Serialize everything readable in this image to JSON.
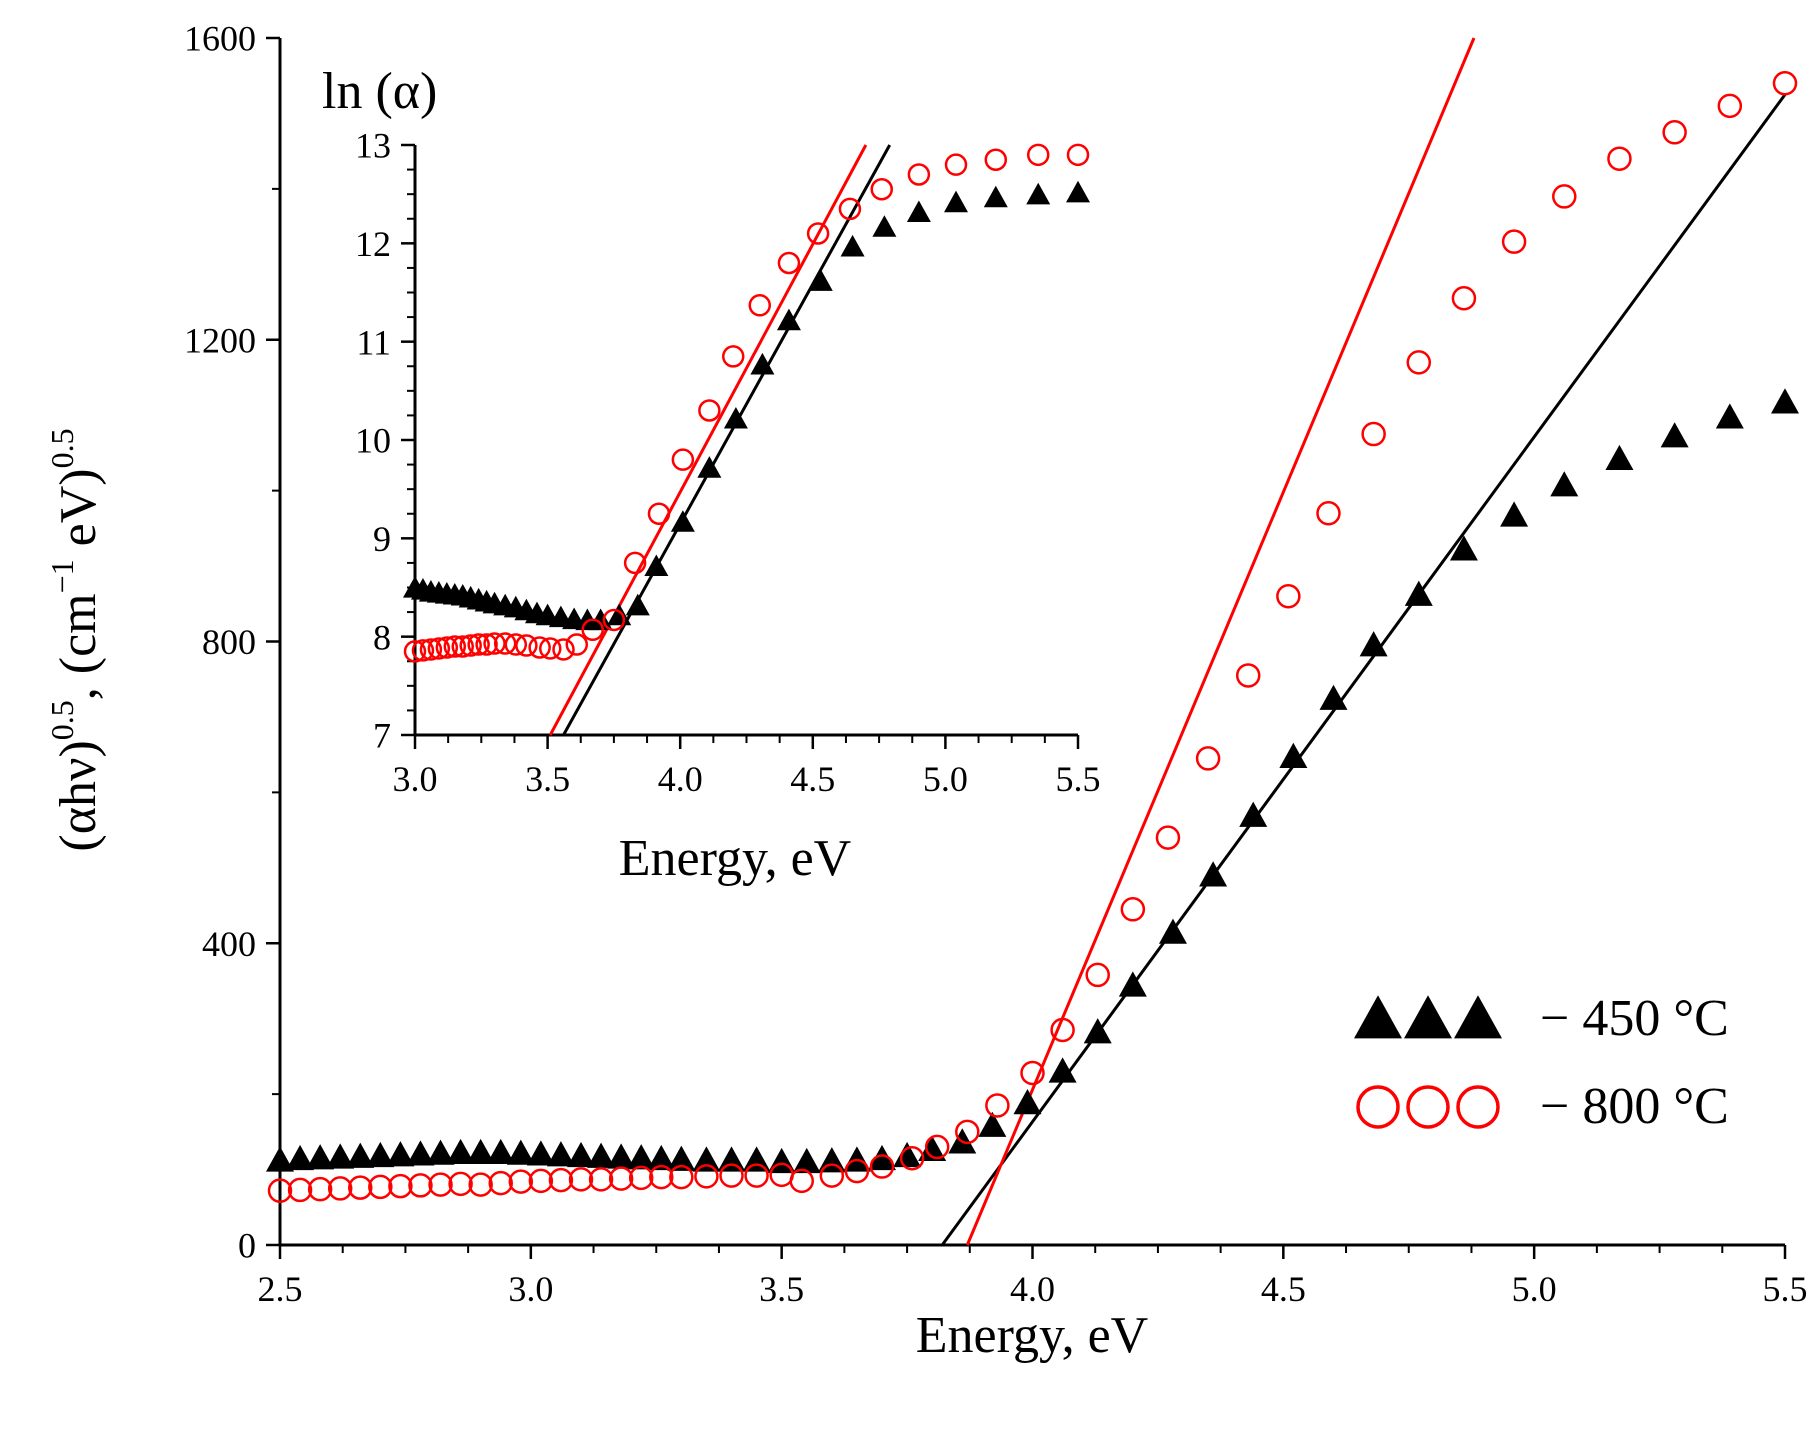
{
  "chart_data": [
    {
      "type": "scatter",
      "role": "main",
      "title": "",
      "xlabel": "Energy, eV",
      "ylabel_parts": {
        "base": "(αhν)",
        "exp1": "0.5",
        "mid": ", (cm",
        "exp2": "−1",
        "mid2": " eV)",
        "exp3": "0.5"
      },
      "xlim": [
        2.5,
        5.5
      ],
      "ylim": [
        0,
        1600
      ],
      "xticks": [
        2.5,
        3.0,
        3.5,
        4.0,
        4.5,
        5.0,
        5.5
      ],
      "xtick_labels": [
        "2.5",
        "3.0",
        "3.5",
        "4.0",
        "4.5",
        "5.0",
        "5.5"
      ],
      "yticks": [
        0,
        400,
        800,
        1200,
        1600
      ],
      "ytick_labels": [
        "0",
        "400",
        "800",
        "1200",
        "1600"
      ],
      "grid": false,
      "legend_position": "bottom-right",
      "series": [
        {
          "name": "− 450 °C",
          "marker": "triangle",
          "color": "#000000",
          "x": [
            2.5,
            2.54,
            2.58,
            2.62,
            2.66,
            2.7,
            2.74,
            2.78,
            2.82,
            2.86,
            2.9,
            2.94,
            2.98,
            3.02,
            3.06,
            3.1,
            3.14,
            3.18,
            3.22,
            3.26,
            3.3,
            3.35,
            3.4,
            3.45,
            3.5,
            3.55,
            3.6,
            3.65,
            3.7,
            3.75,
            3.8,
            3.86,
            3.92,
            3.99,
            4.06,
            4.13,
            4.2,
            4.28,
            4.36,
            4.44,
            4.52,
            4.6,
            4.68,
            4.77,
            4.86,
            4.96,
            5.06,
            5.17,
            5.28,
            5.39,
            5.5
          ],
          "y": [
            110,
            112,
            113,
            114,
            115,
            116,
            117,
            118,
            119,
            120,
            120,
            120,
            119,
            118,
            117,
            116,
            115,
            114,
            113,
            112,
            111,
            110,
            110,
            110,
            108,
            108,
            109,
            110,
            112,
            116,
            124,
            134,
            156,
            186,
            228,
            280,
            342,
            412,
            488,
            567,
            645,
            722,
            793,
            860,
            920,
            965,
            1005,
            1040,
            1070,
            1095,
            1115
          ]
        },
        {
          "name": "− 800 °C",
          "marker": "circle",
          "color": "#ff0000",
          "x": [
            2.5,
            2.54,
            2.58,
            2.62,
            2.66,
            2.7,
            2.74,
            2.78,
            2.82,
            2.86,
            2.9,
            2.94,
            2.98,
            3.02,
            3.06,
            3.1,
            3.14,
            3.18,
            3.22,
            3.26,
            3.3,
            3.35,
            3.4,
            3.45,
            3.5,
            3.54,
            3.6,
            3.65,
            3.7,
            3.76,
            3.81,
            3.87,
            3.93,
            4.0,
            4.06,
            4.13,
            4.2,
            4.27,
            4.35,
            4.43,
            4.51,
            4.59,
            4.68,
            4.77,
            4.86,
            4.96,
            5.06,
            5.17,
            5.28,
            5.39,
            5.5
          ],
          "y": [
            72,
            73,
            74,
            75,
            76,
            77,
            78,
            79,
            80,
            81,
            80,
            82,
            84,
            85,
            86,
            87,
            87,
            88,
            89,
            90,
            90,
            91,
            92,
            92,
            93,
            85,
            92,
            98,
            104,
            115,
            130,
            150,
            185,
            228,
            285,
            358,
            445,
            540,
            645,
            755,
            860,
            970,
            1075,
            1170,
            1255,
            1330,
            1390,
            1440,
            1475,
            1510,
            1540
          ]
        }
      ],
      "fits": [
        {
          "name": "450 °C fit",
          "color": "#000000",
          "x": [
            3.82,
            5.5
          ],
          "y": [
            0,
            1525
          ]
        },
        {
          "name": "800 °C fit",
          "color": "#ff0000",
          "x": [
            3.87,
            4.88
          ],
          "y": [
            0,
            1600
          ]
        }
      ]
    },
    {
      "type": "scatter",
      "role": "inset",
      "title": "",
      "xlabel": "Energy, eV",
      "ylabel": "ln (α)",
      "xlim": [
        3.0,
        5.5
      ],
      "ylim": [
        7,
        13
      ],
      "xticks": [
        3.0,
        3.5,
        4.0,
        4.5,
        5.0,
        5.5
      ],
      "xtick_labels": [
        "3.0",
        "3.5",
        "4.0",
        "4.5",
        "5.0",
        "5.5"
      ],
      "yticks": [
        7,
        8,
        9,
        10,
        11,
        12,
        13
      ],
      "ytick_labels": [
        "7",
        "8",
        "9",
        "10",
        "11",
        "12",
        "13"
      ],
      "grid": false,
      "series": [
        {
          "name": "450 °C",
          "marker": "triangle",
          "color": "#000000",
          "x": [
            3.0,
            3.03,
            3.06,
            3.09,
            3.12,
            3.15,
            3.18,
            3.21,
            3.24,
            3.27,
            3.3,
            3.34,
            3.38,
            3.42,
            3.46,
            3.5,
            3.55,
            3.6,
            3.65,
            3.7,
            3.77,
            3.84,
            3.91,
            4.01,
            4.11,
            4.21,
            4.31,
            4.41,
            4.53,
            4.65,
            4.77,
            4.9,
            5.04,
            5.19,
            5.35,
            5.5
          ],
          "y": [
            8.48,
            8.46,
            8.44,
            8.43,
            8.42,
            8.41,
            8.4,
            8.38,
            8.36,
            8.34,
            8.32,
            8.3,
            8.28,
            8.25,
            8.22,
            8.2,
            8.18,
            8.16,
            8.15,
            8.15,
            8.2,
            8.3,
            8.7,
            9.15,
            9.7,
            10.2,
            10.75,
            11.2,
            11.6,
            11.95,
            12.15,
            12.3,
            12.4,
            12.45,
            12.48,
            12.5
          ]
        },
        {
          "name": "800 °C",
          "marker": "circle",
          "color": "#ff0000",
          "x": [
            3.0,
            3.03,
            3.06,
            3.09,
            3.12,
            3.15,
            3.18,
            3.21,
            3.24,
            3.27,
            3.3,
            3.34,
            3.38,
            3.42,
            3.47,
            3.51,
            3.56,
            3.61,
            3.67,
            3.75,
            3.83,
            3.92,
            4.01,
            4.11,
            4.2,
            4.3,
            4.41,
            4.52,
            4.64,
            4.76,
            4.9,
            5.04,
            5.19,
            5.35,
            5.5
          ],
          "y": [
            7.85,
            7.86,
            7.87,
            7.88,
            7.89,
            7.9,
            7.9,
            7.91,
            7.92,
            7.92,
            7.93,
            7.93,
            7.92,
            7.91,
            7.89,
            7.88,
            7.87,
            7.92,
            8.07,
            8.17,
            8.75,
            9.25,
            9.8,
            10.3,
            10.85,
            11.37,
            11.8,
            12.1,
            12.35,
            12.55,
            12.7,
            12.8,
            12.85,
            12.9,
            12.9
          ]
        }
      ],
      "fits": [
        {
          "name": "450 °C fit",
          "color": "#000000",
          "x": [
            3.56,
            4.79
          ],
          "y": [
            7,
            13
          ]
        },
        {
          "name": "800 °C fit",
          "color": "#ff0000",
          "x": [
            3.51,
            4.7
          ],
          "y": [
            7,
            13
          ]
        }
      ]
    }
  ]
}
